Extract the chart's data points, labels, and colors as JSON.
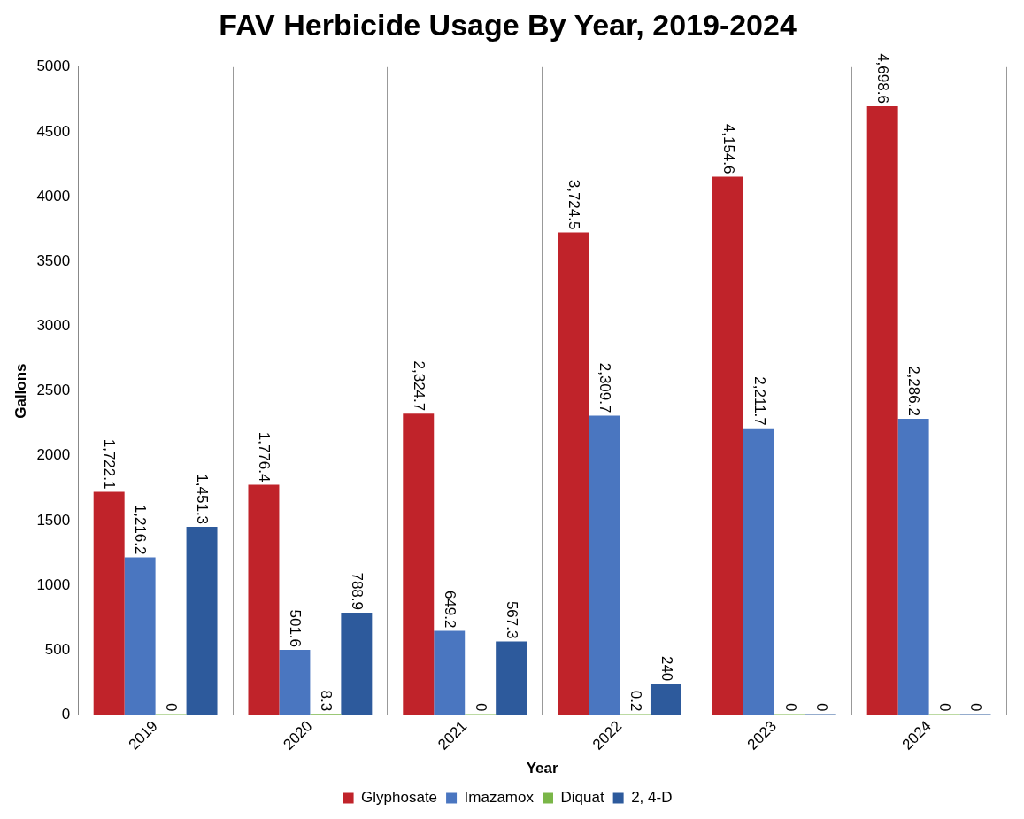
{
  "chart_data": {
    "type": "bar",
    "title": "FAV Herbicide Usage By Year, 2019-2024",
    "xlabel": "Year",
    "ylabel": "Gallons",
    "categories": [
      "2019",
      "2020",
      "2021",
      "2022",
      "2023",
      "2024"
    ],
    "series": [
      {
        "name": "Glyphosate",
        "color": "#c0232a",
        "values": [
          1722.1,
          1776.4,
          2324.7,
          3724.5,
          4154.6,
          4698.6
        ],
        "value_labels": [
          "1,722.1",
          "1,776.4",
          "2,324.7",
          "3,724.5",
          "4,154.6",
          "4,698.6"
        ]
      },
      {
        "name": "Imazamox",
        "color": "#4a76c0",
        "values": [
          1216.2,
          501.6,
          649.2,
          2309.7,
          2211.7,
          2286.2
        ],
        "value_labels": [
          "1,216.2",
          "501.6",
          "649.2",
          "2,309.7",
          "2,211.7",
          "2,286.2"
        ]
      },
      {
        "name": "Diquat",
        "color": "#7ab648",
        "values": [
          0,
          8.3,
          0,
          0.2,
          0,
          0
        ],
        "value_labels": [
          "0",
          "8.3",
          "0",
          "0.2",
          "0",
          "0"
        ]
      },
      {
        "name": "2, 4-D",
        "color": "#2d5a9c",
        "values": [
          1451.3,
          788.9,
          567.3,
          240,
          0,
          0
        ],
        "value_labels": [
          "1,451.3",
          "788.9",
          "567.3",
          "240",
          "0",
          "0"
        ]
      }
    ],
    "ylim": [
      0,
      5000
    ],
    "yticks": [
      0,
      500,
      1000,
      1500,
      2000,
      2500,
      3000,
      3500,
      4000,
      4500,
      5000
    ],
    "grid": "x",
    "legend": "bottom"
  }
}
